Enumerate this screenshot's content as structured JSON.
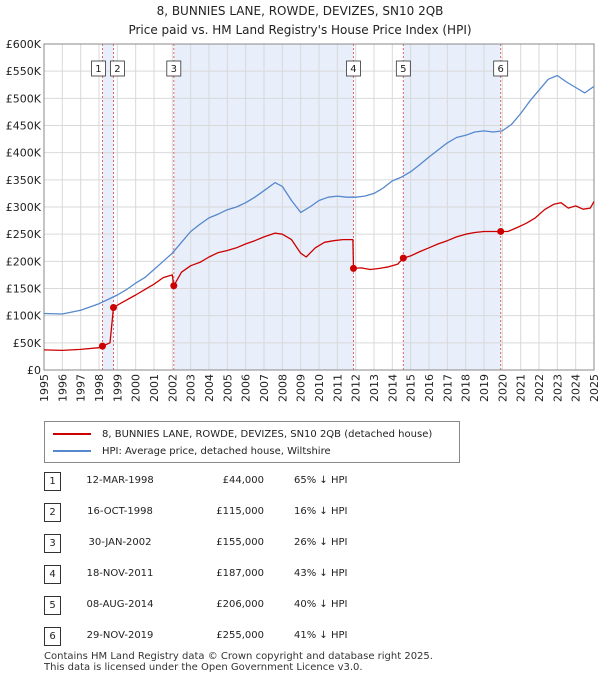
{
  "title_line1": "8, BUNNIES LANE, ROWDE, DEVIZES, SN10 2QB",
  "title_line2": "Price paid vs. HM Land Registry's House Price Index (HPI)",
  "colors": {
    "property": "#cc0000",
    "hpi": "#5588cc",
    "shade": "#e8eefa",
    "vline": "#dd6666"
  },
  "chart_data": {
    "type": "line",
    "xlim": [
      1995,
      2025
    ],
    "ylim": [
      0,
      600000
    ],
    "yticks": [
      0,
      50000,
      100000,
      150000,
      200000,
      250000,
      300000,
      350000,
      400000,
      450000,
      500000,
      550000,
      600000
    ],
    "yticklabels": [
      "£0",
      "£50K",
      "£100K",
      "£150K",
      "£200K",
      "£250K",
      "£300K",
      "£350K",
      "£400K",
      "£450K",
      "£500K",
      "£550K",
      "£600K"
    ],
    "xticks": [
      1995,
      1996,
      1997,
      1998,
      1999,
      2000,
      2001,
      2002,
      2003,
      2004,
      2005,
      2006,
      2007,
      2008,
      2009,
      2010,
      2011,
      2012,
      2013,
      2014,
      2015,
      2016,
      2017,
      2018,
      2019,
      2020,
      2021,
      2022,
      2023,
      2024,
      2025
    ],
    "xticklabels": [
      "1995",
      "1996",
      "1997",
      "1998",
      "1999",
      "2000",
      "2001",
      "2002",
      "2003",
      "2004",
      "2005",
      "2006",
      "2007",
      "2008",
      "2009",
      "2010",
      "2011",
      "2012",
      "2013",
      "2014",
      "2015",
      "2016",
      "2017",
      "2018",
      "2019",
      "2020",
      "2021",
      "2022",
      "2023",
      "2024",
      "2025"
    ],
    "shaded_ranges": [
      [
        1998.19,
        1998.79
      ],
      [
        2002.08,
        2011.88
      ],
      [
        2014.6,
        2019.91
      ]
    ],
    "series": [
      {
        "name": "8, BUNNIES LANE, ROWDE, DEVIZES, SN10 2QB (detached house)",
        "color": "#cc0000",
        "x": [
          1995.0,
          1996.0,
          1997.0,
          1998.0,
          1998.19,
          1998.6,
          1998.79,
          1999.3,
          2000.0,
          2000.5,
          2001.0,
          2001.5,
          2002.0,
          2002.08,
          2002.5,
          2003.0,
          2003.5,
          2004.0,
          2004.5,
          2005.0,
          2005.5,
          2006.0,
          2006.5,
          2007.0,
          2007.6,
          2008.0,
          2008.5,
          2009.0,
          2009.3,
          2009.8,
          2010.3,
          2010.8,
          2011.3,
          2011.85,
          2011.88,
          2012.3,
          2012.8,
          2013.3,
          2013.8,
          2014.3,
          2014.6,
          2015.0,
          2015.5,
          2016.0,
          2016.5,
          2017.0,
          2017.5,
          2018.0,
          2018.5,
          2019.0,
          2019.5,
          2019.91,
          2020.3,
          2020.8,
          2021.3,
          2021.8,
          2022.3,
          2022.8,
          2023.2,
          2023.6,
          2024.0,
          2024.4,
          2024.8,
          2025.0
        ],
        "y": [
          37000,
          36000,
          38000,
          41000,
          44000,
          50000,
          115000,
          125000,
          138000,
          148000,
          158000,
          170000,
          175000,
          155000,
          180000,
          192000,
          198000,
          208000,
          216000,
          220000,
          225000,
          232000,
          238000,
          245000,
          252000,
          250000,
          240000,
          215000,
          208000,
          225000,
          235000,
          238000,
          240000,
          240000,
          187000,
          188000,
          185000,
          187000,
          190000,
          195000,
          206000,
          210000,
          218000,
          225000,
          232000,
          238000,
          245000,
          250000,
          253000,
          255000,
          255000,
          255000,
          255000,
          262000,
          270000,
          280000,
          295000,
          305000,
          308000,
          298000,
          302000,
          296000,
          298000,
          310000
        ]
      },
      {
        "name": "HPI: Average price, detached house, Wiltshire",
        "color": "#5588cc",
        "x": [
          1995.0,
          1996.0,
          1997.0,
          1998.0,
          1998.5,
          1999.0,
          1999.5,
          2000.0,
          2000.5,
          2001.0,
          2001.5,
          2002.0,
          2002.5,
          2003.0,
          2003.5,
          2004.0,
          2004.5,
          2005.0,
          2005.5,
          2006.0,
          2006.5,
          2007.0,
          2007.6,
          2008.0,
          2008.5,
          2009.0,
          2009.5,
          2010.0,
          2010.5,
          2011.0,
          2011.5,
          2012.0,
          2012.5,
          2013.0,
          2013.5,
          2014.0,
          2014.5,
          2015.0,
          2015.5,
          2016.0,
          2016.5,
          2017.0,
          2017.5,
          2018.0,
          2018.5,
          2019.0,
          2019.5,
          2020.0,
          2020.5,
          2021.0,
          2021.5,
          2022.0,
          2022.5,
          2023.0,
          2023.5,
          2024.0,
          2024.5,
          2025.0
        ],
        "y": [
          104000,
          103000,
          110000,
          122000,
          130000,
          138000,
          148000,
          160000,
          170000,
          185000,
          200000,
          215000,
          235000,
          255000,
          268000,
          280000,
          287000,
          295000,
          300000,
          308000,
          318000,
          330000,
          345000,
          338000,
          312000,
          290000,
          300000,
          312000,
          318000,
          320000,
          318000,
          318000,
          320000,
          325000,
          335000,
          348000,
          355000,
          365000,
          378000,
          392000,
          405000,
          418000,
          428000,
          432000,
          438000,
          440000,
          438000,
          440000,
          452000,
          472000,
          495000,
          515000,
          535000,
          542000,
          530000,
          520000,
          510000,
          522000
        ]
      }
    ],
    "sales": [
      {
        "label": "1",
        "x": 1998.19,
        "y": 44000
      },
      {
        "label": "2",
        "x": 1998.79,
        "y": 115000
      },
      {
        "label": "3",
        "x": 2002.08,
        "y": 155000
      },
      {
        "label": "4",
        "x": 2011.88,
        "y": 187000
      },
      {
        "label": "5",
        "x": 2014.6,
        "y": 206000
      },
      {
        "label": "6",
        "x": 2019.91,
        "y": 255000
      }
    ]
  },
  "legend": {
    "property_label": "8, BUNNIES LANE, ROWDE, DEVIZES, SN10 2QB (detached house)",
    "hpi_label": "HPI: Average price, detached house, Wiltshire"
  },
  "sales_table": [
    {
      "num": "1",
      "date": "12-MAR-1998",
      "price": "£44,000",
      "hpi": "65% ↓ HPI"
    },
    {
      "num": "2",
      "date": "16-OCT-1998",
      "price": "£115,000",
      "hpi": "16% ↓ HPI"
    },
    {
      "num": "3",
      "date": "30-JAN-2002",
      "price": "£155,000",
      "hpi": "26% ↓ HPI"
    },
    {
      "num": "4",
      "date": "18-NOV-2011",
      "price": "£187,000",
      "hpi": "43% ↓ HPI"
    },
    {
      "num": "5",
      "date": "08-AUG-2014",
      "price": "£206,000",
      "hpi": "40% ↓ HPI"
    },
    {
      "num": "6",
      "date": "29-NOV-2019",
      "price": "£255,000",
      "hpi": "41% ↓ HPI"
    }
  ],
  "footer_line1": "Contains HM Land Registry data © Crown copyright and database right 2025.",
  "footer_line2": "This data is licensed under the Open Government Licence v3.0."
}
